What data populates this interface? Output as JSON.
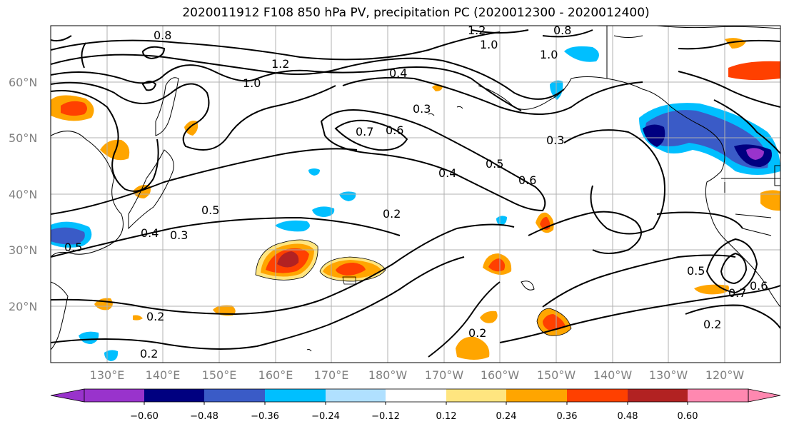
{
  "title": "2020011912 F108 850 hPa PV, precipitation PC (2020012300 - 2020012400)",
  "map": {
    "lat_labels": [
      "60°N",
      "50°N",
      "40°N",
      "30°N",
      "20°N"
    ],
    "lon_labels": [
      "130°E",
      "140°E",
      "150°E",
      "160°E",
      "170°E",
      "180°W",
      "170°W",
      "160°W",
      "150°W",
      "140°W",
      "130°W",
      "120°W"
    ],
    "contour_labels": [
      "0.8",
      "1.2",
      "1.0",
      "0.8",
      "1.2",
      "1.0",
      "1.0",
      "0.4",
      "0.3",
      "0.7",
      "0.6",
      "0.3",
      "0.5",
      "0.6",
      "0.4",
      "0.5",
      "0.2",
      "0.4",
      "0.3",
      "0.5",
      "0.2",
      "0.2",
      "0.2",
      "0.2",
      "0.5",
      "0.6",
      "0.7"
    ]
  },
  "colorbar": {
    "tick_labels": [
      "−0.60",
      "−0.48",
      "−0.36",
      "−0.24",
      "−0.12",
      "0.12",
      "0.24",
      "0.36",
      "0.48",
      "0.60"
    ],
    "colors": [
      "#9933cc",
      "#000080",
      "#3a5bc7",
      "#00bfff",
      "#b0e0ff",
      "#ffffff",
      "#ffe57f",
      "#ffa500",
      "#ff4000",
      "#b22222",
      "#ff88b0"
    ]
  },
  "precip_colors": {
    "neg_strong": "#000080",
    "neg_mid": "#3a5bc7",
    "neg_light": "#00bfff",
    "neg_faint": "#b0e0ff",
    "pos_faint": "#ffe57f",
    "pos_light": "#ffa500",
    "pos_mid": "#ff4000",
    "pos_strong": "#b22222",
    "purple": "#9933cc"
  }
}
